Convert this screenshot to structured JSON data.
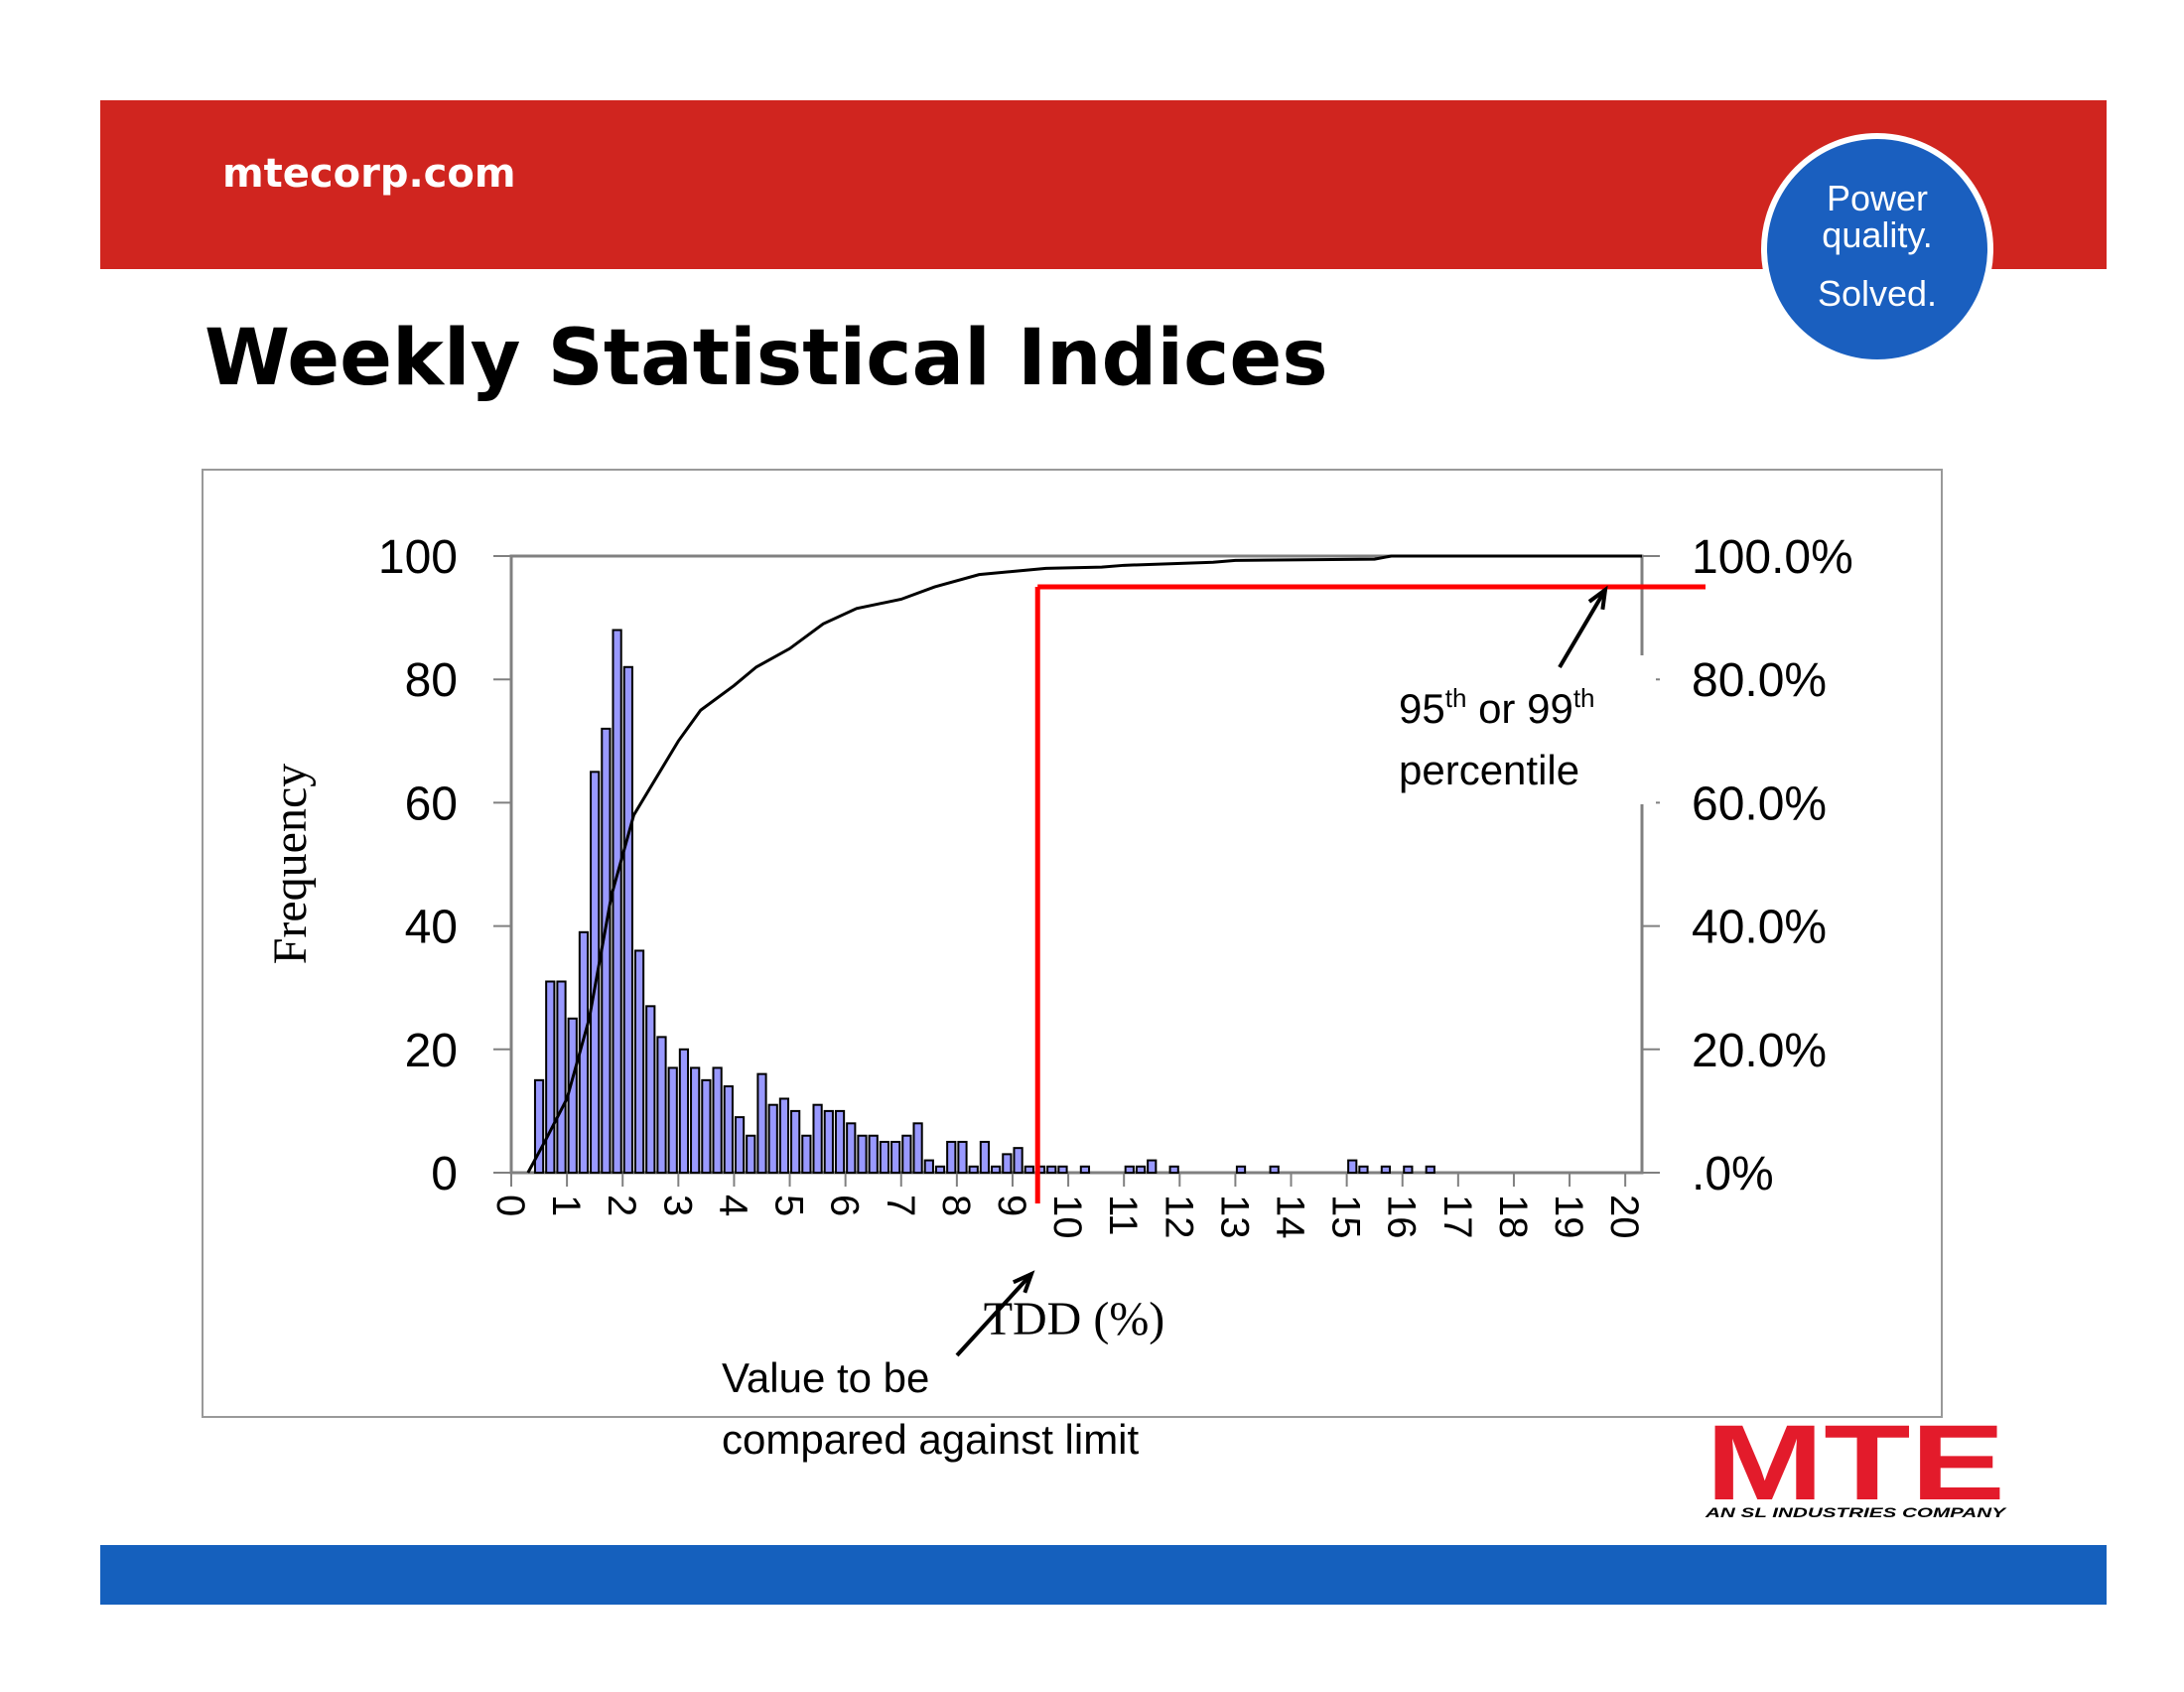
{
  "header": {
    "site": "mtecorp.com",
    "badge": [
      "Power",
      "quality.",
      "Solved."
    ]
  },
  "title": "Weekly Statistical Indices",
  "logo": {
    "name": "MTE",
    "tagline": "AN SL INDUSTRIES COMPANY"
  },
  "chart_data": {
    "type": "histogram",
    "x_label": "TDD (%)",
    "y_label": "Frequency",
    "bins": [
      0.4,
      0.6,
      0.8,
      1.0,
      1.2,
      1.4,
      1.6,
      1.8,
      2.0,
      2.2,
      2.4,
      2.6,
      2.8,
      3.0,
      3.2,
      3.4,
      3.6,
      3.8,
      4.0,
      4.2,
      4.4,
      4.6,
      4.8,
      5.0,
      5.2,
      5.4,
      5.6,
      5.8,
      6.0,
      6.2,
      6.4,
      6.6,
      6.8,
      7.0,
      7.2,
      7.4,
      7.6,
      7.8,
      8.0,
      8.2,
      8.4,
      8.6,
      8.8,
      9.0,
      9.2,
      9.4,
      9.6,
      9.8,
      10.0,
      10.2,
      10.4,
      10.6,
      10.8,
      11.0,
      11.2,
      11.4,
      11.6,
      11.8,
      12.0,
      12.2,
      12.4,
      12.6,
      12.8,
      13.0,
      13.2,
      13.4,
      13.6,
      13.8,
      14.0,
      14.2,
      14.4,
      14.6,
      14.8,
      15.0,
      15.2,
      15.4,
      15.6,
      15.8,
      16.0,
      16.2,
      16.4,
      16.6
    ],
    "counts": [
      15,
      31,
      31,
      25,
      39,
      65,
      72,
      88,
      82,
      36,
      27,
      22,
      17,
      20,
      17,
      15,
      17,
      14,
      9,
      6,
      16,
      11,
      12,
      10,
      6,
      11,
      10,
      10,
      8,
      6,
      6,
      5,
      5,
      6,
      8,
      2,
      1,
      5,
      5,
      1,
      5,
      1,
      3,
      4,
      1,
      1,
      1,
      1,
      0,
      1,
      0,
      0,
      0,
      1,
      1,
      2,
      0,
      1,
      0,
      0,
      0,
      0,
      0,
      1,
      0,
      0,
      1,
      0,
      0,
      0,
      0,
      0,
      0,
      2,
      1,
      0,
      1,
      0,
      1,
      0,
      1
    ],
    "color": "#9999ff",
    "cumulative": {
      "axis": "y2",
      "color": "#000000",
      "x": [
        0.3,
        0.6,
        1.0,
        1.4,
        1.8,
        2.2,
        2.6,
        3.0,
        3.4,
        4.0,
        4.4,
        5.0,
        5.6,
        6.2,
        7.0,
        7.6,
        8.4,
        9.0,
        9.6,
        10.6,
        11.0,
        12.6,
        13.0,
        15.5,
        15.8,
        20.3
      ],
      "values": [
        0,
        5,
        12,
        25,
        45,
        58,
        64,
        70,
        75,
        79,
        82,
        85,
        89,
        91.5,
        93,
        95,
        97,
        97.5,
        98,
        98.2,
        98.5,
        99,
        99.3,
        99.5,
        100,
        100
      ]
    },
    "xlim": [
      0,
      20.3
    ],
    "xticks": [
      0,
      1,
      2,
      3,
      4,
      5,
      6,
      7,
      8,
      9,
      10,
      11,
      12,
      13,
      14,
      15,
      16,
      17,
      18,
      19,
      20
    ],
    "ylim": [
      0,
      100
    ],
    "yticks": [
      0,
      20,
      40,
      60,
      80,
      100
    ],
    "y2lim": [
      0,
      100
    ],
    "y2ticks": [
      {
        "value": 0,
        "label": ".0%"
      },
      {
        "value": 20,
        "label": "20.0%"
      },
      {
        "value": 40,
        "label": "40.0%"
      },
      {
        "value": 60,
        "label": "60.0%"
      },
      {
        "value": 80,
        "label": "80.0%"
      },
      {
        "value": 100,
        "label": "100.0%"
      }
    ],
    "threshold": {
      "x": 9.45,
      "y": 95,
      "color": "#ff0000"
    },
    "annotations": [
      {
        "parts": [
          "95",
          "th",
          " or 99",
          "th"
        ],
        "line2": "percentile"
      },
      {
        "line1": "Value to be",
        "line2": "compared against limit"
      }
    ]
  }
}
